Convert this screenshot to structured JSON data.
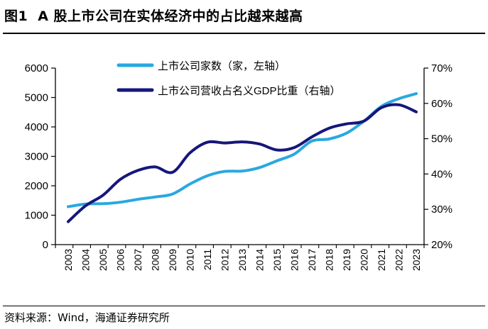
{
  "figure": {
    "number": "图1",
    "title": "A 股上市公司在实体经济中的占比越来越高",
    "source": "资料来源：Wind，海通证券研究所"
  },
  "colors": {
    "companies": "#29a8e0",
    "gdp_ratio": "#16167a",
    "axis": "#000000"
  },
  "chart_data": {
    "type": "line",
    "title": "A 股上市公司在实体经济中的占比越来越高",
    "categories": [
      "2003",
      "2004",
      "2005",
      "2006",
      "2007",
      "2008",
      "2009",
      "2010",
      "2011",
      "2012",
      "2013",
      "2014",
      "2015",
      "2016",
      "2017",
      "2018",
      "2019",
      "2020",
      "2021",
      "2022",
      "2023"
    ],
    "series": [
      {
        "name": "上市公司家数（家，左轴）",
        "axis": "left",
        "color": "#29a8e0",
        "values": [
          1290,
          1380,
          1390,
          1440,
          1540,
          1620,
          1720,
          2060,
          2340,
          2490,
          2500,
          2620,
          2850,
          3080,
          3520,
          3590,
          3790,
          4200,
          4700,
          4960,
          5130
        ]
      },
      {
        "name": "上市公司营收占名义GDP比重（右轴）",
        "axis": "right",
        "color": "#16167a",
        "values": [
          26.5,
          31.0,
          34.0,
          38.5,
          41.0,
          42.0,
          40.5,
          46.0,
          49.0,
          48.8,
          49.1,
          48.5,
          46.8,
          47.5,
          50.5,
          53.0,
          54.2,
          55.0,
          58.8,
          59.6,
          57.6
        ]
      }
    ],
    "y_left": {
      "ticks": [
        "0",
        "1000",
        "2000",
        "3000",
        "4000",
        "5000",
        "6000"
      ],
      "lim": [
        0,
        6000
      ]
    },
    "y_right": {
      "ticks": [
        "20%",
        "30%",
        "40%",
        "50%",
        "60%",
        "70%"
      ],
      "lim": [
        20,
        70
      ]
    },
    "legend_position": "top-left",
    "grid": false
  }
}
